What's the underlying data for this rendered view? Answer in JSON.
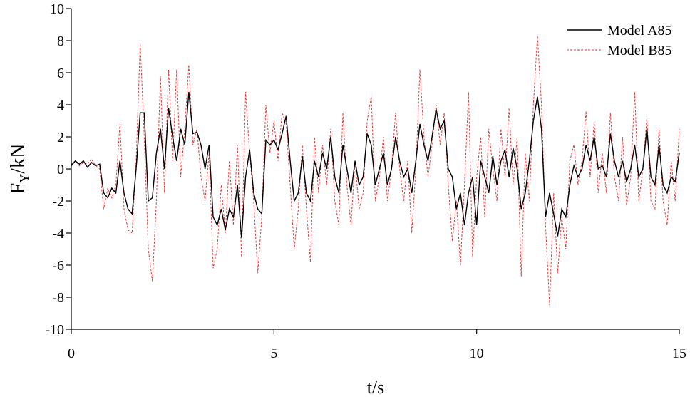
{
  "chart_data": {
    "type": "line",
    "xlabel": "t/s",
    "ylabel": {
      "base": "F",
      "subscript": "Y",
      "unit": "/kN"
    },
    "xlim": [
      0,
      15
    ],
    "xticks": [
      0,
      5,
      10,
      15
    ],
    "ylim": [
      -10,
      10
    ],
    "yticks": [
      -10,
      -8,
      -6,
      -4,
      -2,
      0,
      2,
      4,
      6,
      8,
      10
    ],
    "legend": "upper right",
    "x": [
      0,
      0.1,
      0.2,
      0.3,
      0.4,
      0.5,
      0.6,
      0.7,
      0.8,
      0.9,
      1,
      1.1,
      1.2,
      1.3,
      1.4,
      1.5,
      1.6,
      1.7,
      1.8,
      1.9,
      2,
      2.1,
      2.2,
      2.3,
      2.4,
      2.5,
      2.6,
      2.7,
      2.8,
      2.9,
      3,
      3.1,
      3.2,
      3.3,
      3.4,
      3.5,
      3.6,
      3.7,
      3.8,
      3.9,
      4,
      4.1,
      4.2,
      4.3,
      4.4,
      4.5,
      4.6,
      4.7,
      4.8,
      4.9,
      5,
      5.1,
      5.2,
      5.3,
      5.4,
      5.5,
      5.6,
      5.7,
      5.8,
      5.9,
      6,
      6.1,
      6.2,
      6.3,
      6.4,
      6.5,
      6.6,
      6.7,
      6.8,
      6.9,
      7,
      7.1,
      7.2,
      7.3,
      7.4,
      7.5,
      7.6,
      7.7,
      7.8,
      7.9,
      8,
      8.1,
      8.2,
      8.3,
      8.4,
      8.5,
      8.6,
      8.7,
      8.8,
      8.9,
      9,
      9.1,
      9.2,
      9.3,
      9.4,
      9.5,
      9.6,
      9.7,
      9.8,
      9.9,
      10,
      10.1,
      10.2,
      10.3,
      10.4,
      10.5,
      10.6,
      10.7,
      10.8,
      10.9,
      11,
      11.1,
      11.2,
      11.3,
      11.4,
      11.5,
      11.6,
      11.7,
      11.8,
      11.9,
      12,
      12.1,
      12.2,
      12.3,
      12.4,
      12.5,
      12.6,
      12.7,
      12.8,
      12.9,
      13,
      13.1,
      13.2,
      13.3,
      13.4,
      13.5,
      13.6,
      13.7,
      13.8,
      13.9,
      14,
      14.1,
      14.2,
      14.3,
      14.4,
      14.5,
      14.6,
      14.7,
      14.8,
      14.9,
      15
    ],
    "series": [
      {
        "name": "Model A85",
        "color": "#000000",
        "dash": false,
        "values": [
          0.2,
          0.5,
          0.3,
          0.5,
          0.1,
          0.4,
          0.2,
          0.3,
          -1.5,
          -1.8,
          -1.2,
          -1.5,
          0.5,
          -1.5,
          -2.5,
          -2.8,
          0,
          3.5,
          3.5,
          -2,
          -1.8,
          1,
          2.5,
          0,
          3.8,
          2,
          0.5,
          2.5,
          1.5,
          4.8,
          2.2,
          2.3,
          1.5,
          0,
          1.5,
          -3,
          -3.5,
          -2.5,
          -3.8,
          -2.5,
          -3,
          -1,
          -4.3,
          -0.5,
          1.2,
          -1.5,
          -2.5,
          -2.8,
          1.8,
          1.5,
          1.8,
          1.2,
          2.2,
          3.3,
          0.5,
          -2,
          -1.5,
          0.8,
          -1.5,
          -2,
          0.5,
          -0.5,
          1,
          0,
          2,
          -0.5,
          -1.5,
          1.5,
          0,
          -1.5,
          0.5,
          -1,
          -0.5,
          2.2,
          1.5,
          -1,
          0,
          1,
          -1,
          0,
          2,
          0.5,
          -0.5,
          0,
          -1.5,
          0.5,
          2.8,
          1.5,
          0.5,
          2,
          3.7,
          2.5,
          3,
          0,
          -0.5,
          -2.5,
          -1.5,
          -3.5,
          -1.5,
          -0.5,
          -3.5,
          0.5,
          -0.5,
          -1.5,
          0.8,
          -1,
          0.5,
          1.2,
          -0.5,
          1.3,
          0,
          -2.5,
          -1.5,
          0.5,
          3,
          4.5,
          2.5,
          -3,
          -1.5,
          -2.8,
          -4.2,
          -2.5,
          -3,
          -1,
          0.2,
          -0.5,
          0,
          1.5,
          0.5,
          2,
          0,
          0.2,
          -0.5,
          2.2,
          0.5,
          -0.5,
          0.5,
          -0.8,
          0,
          1.5,
          -0.5,
          0,
          2.5,
          -0.5,
          -1,
          1.5,
          -1,
          -1.5,
          -0.5,
          -0.8,
          1
        ]
      },
      {
        "name": "Model B85",
        "color": "#e53a3a",
        "dash": true,
        "values": [
          0.3,
          0.5,
          0.2,
          0.4,
          0.3,
          0.6,
          0.2,
          0,
          -2.5,
          -1.2,
          -1.8,
          -1,
          2.8,
          -2.5,
          -3.8,
          -4,
          0.5,
          7.8,
          2,
          -5,
          -7,
          -2,
          5.8,
          -1.5,
          6.2,
          0.5,
          6.2,
          -0.5,
          2.5,
          6.5,
          1.5,
          2.5,
          -0.5,
          -2,
          1,
          -6.2,
          -5,
          -1,
          -4,
          0.5,
          -3.5,
          1.5,
          -5.5,
          4.8,
          1,
          -2,
          -6.5,
          -3,
          4,
          1,
          3,
          0.5,
          3.5,
          2.8,
          -1,
          -5,
          -2.5,
          1.5,
          -2.5,
          -5.8,
          2,
          -1.5,
          1.5,
          -1,
          2.5,
          -2,
          -3.5,
          3.5,
          -1,
          -3.5,
          0.5,
          -2.5,
          -1.5,
          3,
          4.5,
          -2,
          -0.5,
          2,
          -2,
          0,
          3.5,
          0,
          -2,
          0.5,
          -4,
          0,
          6.2,
          2,
          -0.5,
          1.5,
          4,
          1.5,
          3.5,
          -1,
          -4.5,
          -2,
          -6,
          -1,
          4.8,
          -5.5,
          -0.5,
          2,
          -3,
          2.5,
          0,
          -2,
          2.5,
          -0.5,
          3.8,
          -1,
          2,
          -6.7,
          1,
          -2,
          4,
          8.3,
          4,
          -3.5,
          -8.5,
          -1.5,
          -6.5,
          -3,
          -5,
          0.5,
          1.5,
          -1,
          0.5,
          3.6,
          -0.5,
          3,
          -1.5,
          1,
          -1.5,
          3.5,
          -0.5,
          -2,
          2,
          -2.3,
          -0.5,
          4.8,
          -2,
          0,
          3.2,
          -2,
          -2.5,
          2.5,
          -2,
          -3.5,
          0.5,
          -2,
          2.5
        ]
      }
    ]
  }
}
